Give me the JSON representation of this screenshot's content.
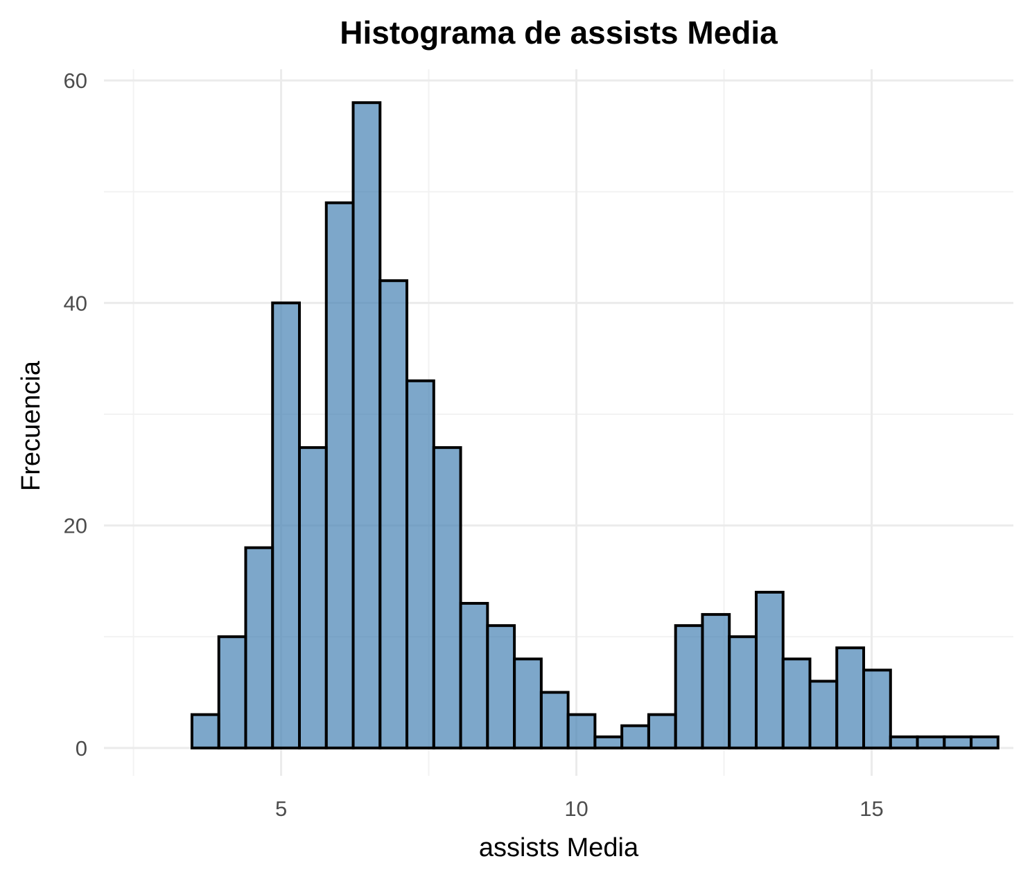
{
  "chart_data": {
    "type": "bar",
    "title": "Histograma de assists Media",
    "xlabel": "assists Media",
    "ylabel": "Frecuencia",
    "xlim": [
      2.0,
      17.4
    ],
    "ylim": [
      -2.5,
      61
    ],
    "x_ticks": [
      5,
      10,
      15
    ],
    "y_ticks": [
      0,
      20,
      40,
      60
    ],
    "grid": true,
    "bin_width": 0.455,
    "bins_start": 3.49,
    "values": [
      3,
      10,
      18,
      40,
      27,
      49,
      58,
      42,
      33,
      27,
      13,
      11,
      8,
      5,
      3,
      1,
      2,
      3,
      11,
      12,
      10,
      14,
      8,
      6,
      9,
      7,
      1,
      1,
      1,
      1
    ],
    "colors": {
      "fill": "#4682b4",
      "stroke": "#000000"
    }
  }
}
